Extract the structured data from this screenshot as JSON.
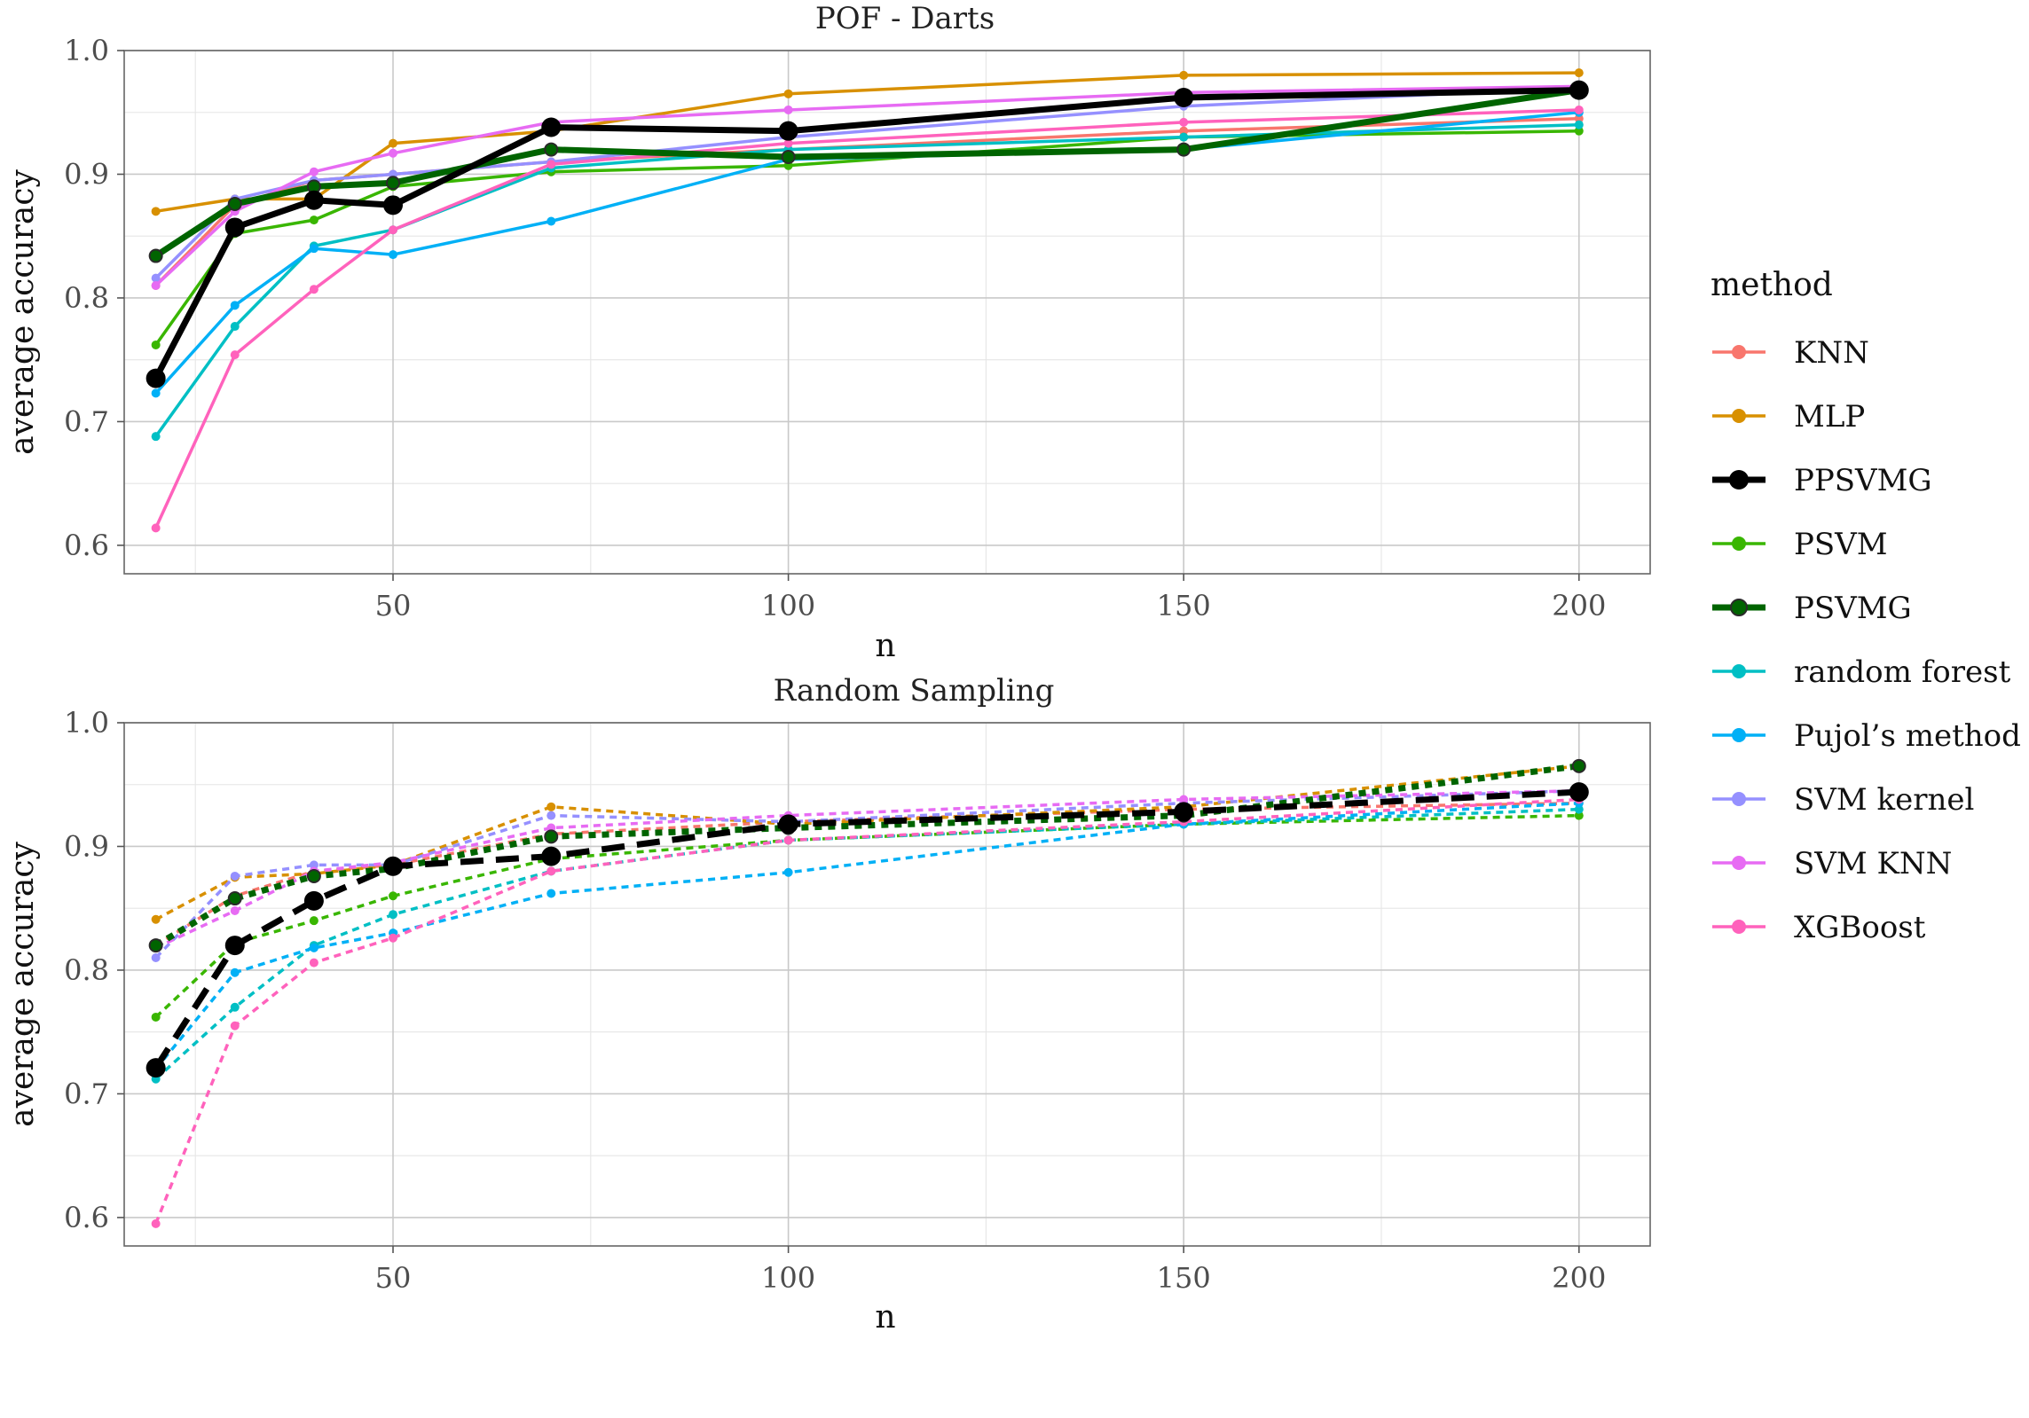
{
  "figure": {
    "legend": {
      "title": "method",
      "position": "right",
      "items": [
        {
          "label": "KNN",
          "color": "#F8766D"
        },
        {
          "label": "MLP",
          "color": "#D89000"
        },
        {
          "label": "PPSVMG",
          "color": "#000000"
        },
        {
          "label": "PSVM",
          "color": "#39B600"
        },
        {
          "label": "PSVMG",
          "color": "#006400"
        },
        {
          "label": "random forest",
          "color": "#00BFC4"
        },
        {
          "label": "Pujol’s method",
          "color": "#00B0F6"
        },
        {
          "label": "SVM kernel",
          "color": "#9590FF"
        },
        {
          "label": "SVM KNN",
          "color": "#E76BF3"
        },
        {
          "label": "XGBoost",
          "color": "#FF62BC"
        }
      ]
    }
  },
  "chart_data": [
    {
      "type": "line",
      "title": "POF - Darts",
      "xlabel": "n",
      "ylabel": "average accuracy",
      "xlim": [
        16,
        209
      ],
      "ylim": [
        0.577,
        1.0
      ],
      "xticks": [
        50,
        100,
        150,
        200
      ],
      "yticks": [
        0.6,
        0.7,
        0.8,
        0.9,
        1.0
      ],
      "ytick_labels": [
        "0.6",
        "0.7",
        "0.8",
        "0.9",
        "1.0"
      ],
      "grid": true,
      "linestyle": "solid",
      "x": [
        20,
        30,
        40,
        50,
        70,
        100,
        150,
        200
      ],
      "series": [
        {
          "name": "KNN",
          "color": "#F8766D",
          "values": [
            0.81,
            0.875,
            0.895,
            0.9,
            0.91,
            0.92,
            0.935,
            0.945
          ]
        },
        {
          "name": "MLP",
          "color": "#D89000",
          "values": [
            0.87,
            0.88,
            0.88,
            0.925,
            0.935,
            0.965,
            0.98,
            0.982
          ]
        },
        {
          "name": "PSVM",
          "color": "#39B600",
          "values": [
            0.762,
            0.852,
            0.863,
            0.89,
            0.902,
            0.907,
            0.93,
            0.935
          ]
        },
        {
          "name": "random forest",
          "color": "#00BFC4",
          "values": [
            0.688,
            0.777,
            0.842,
            0.855,
            0.905,
            0.92,
            0.93,
            0.94
          ]
        },
        {
          "name": "Pujol’s method",
          "color": "#00B0F6",
          "values": [
            0.723,
            0.794,
            0.84,
            0.835,
            0.862,
            0.912,
            0.92,
            0.95
          ]
        },
        {
          "name": "SVM kernel",
          "color": "#9590FF",
          "values": [
            0.816,
            0.88,
            0.895,
            0.9,
            0.91,
            0.93,
            0.955,
            0.97
          ]
        },
        {
          "name": "SVM KNN",
          "color": "#E76BF3",
          "values": [
            0.81,
            0.87,
            0.902,
            0.917,
            0.942,
            0.952,
            0.966,
            0.971
          ]
        },
        {
          "name": "XGBoost",
          "color": "#FF62BC",
          "values": [
            0.614,
            0.754,
            0.807,
            0.855,
            0.908,
            0.925,
            0.942,
            0.952
          ]
        },
        {
          "name": "PSVMG",
          "color": "#006400",
          "values": [
            0.834,
            0.876,
            0.89,
            0.893,
            0.92,
            0.914,
            0.92,
            0.968
          ]
        },
        {
          "name": "PPSVMG",
          "color": "#000000",
          "values": [
            0.735,
            0.857,
            0.879,
            0.875,
            0.938,
            0.935,
            0.962,
            0.968
          ]
        }
      ]
    },
    {
      "type": "line",
      "title": "Random Sampling",
      "xlabel": "n",
      "ylabel": "average accuracy",
      "xlim": [
        16,
        209
      ],
      "ylim": [
        0.577,
        1.0
      ],
      "xticks": [
        50,
        100,
        150,
        200
      ],
      "yticks": [
        0.6,
        0.7,
        0.8,
        0.9,
        1.0
      ],
      "ytick_labels": [
        "0.6",
        "0.7",
        "0.8",
        "0.9",
        "1.0"
      ],
      "grid": true,
      "linestyle": "dotted",
      "x": [
        20,
        30,
        40,
        50,
        70,
        100,
        150,
        200
      ],
      "series": [
        {
          "name": "KNN",
          "color": "#F8766D",
          "values": [
            0.82,
            0.86,
            0.88,
            0.885,
            0.91,
            0.92,
            0.93,
            0.935
          ]
        },
        {
          "name": "MLP",
          "color": "#D89000",
          "values": [
            0.841,
            0.875,
            0.878,
            0.885,
            0.932,
            0.918,
            0.932,
            0.965
          ]
        },
        {
          "name": "PSVM",
          "color": "#39B600",
          "values": [
            0.762,
            0.822,
            0.84,
            0.86,
            0.89,
            0.905,
            0.918,
            0.925
          ]
        },
        {
          "name": "random forest",
          "color": "#00BFC4",
          "values": [
            0.712,
            0.77,
            0.82,
            0.845,
            0.88,
            0.905,
            0.918,
            0.93
          ]
        },
        {
          "name": "Pujol’s method",
          "color": "#00B0F6",
          "values": [
            0.72,
            0.798,
            0.818,
            0.83,
            0.862,
            0.879,
            0.918,
            0.935
          ]
        },
        {
          "name": "SVM kernel",
          "color": "#9590FF",
          "values": [
            0.81,
            0.876,
            0.885,
            0.885,
            0.925,
            0.92,
            0.935,
            0.945
          ]
        },
        {
          "name": "SVM KNN",
          "color": "#E76BF3",
          "values": [
            0.818,
            0.848,
            0.88,
            0.887,
            0.915,
            0.925,
            0.938,
            0.945
          ]
        },
        {
          "name": "XGBoost",
          "color": "#FF62BC",
          "values": [
            0.595,
            0.755,
            0.806,
            0.826,
            0.88,
            0.905,
            0.92,
            0.938
          ]
        },
        {
          "name": "PSVMG",
          "color": "#006400",
          "values": [
            0.82,
            0.858,
            0.876,
            0.882,
            0.908,
            0.915,
            0.925,
            0.965
          ]
        },
        {
          "name": "PPSVMG",
          "color": "#000000",
          "values": [
            0.721,
            0.82,
            0.856,
            0.884,
            0.892,
            0.918,
            0.928,
            0.944
          ]
        }
      ]
    }
  ]
}
